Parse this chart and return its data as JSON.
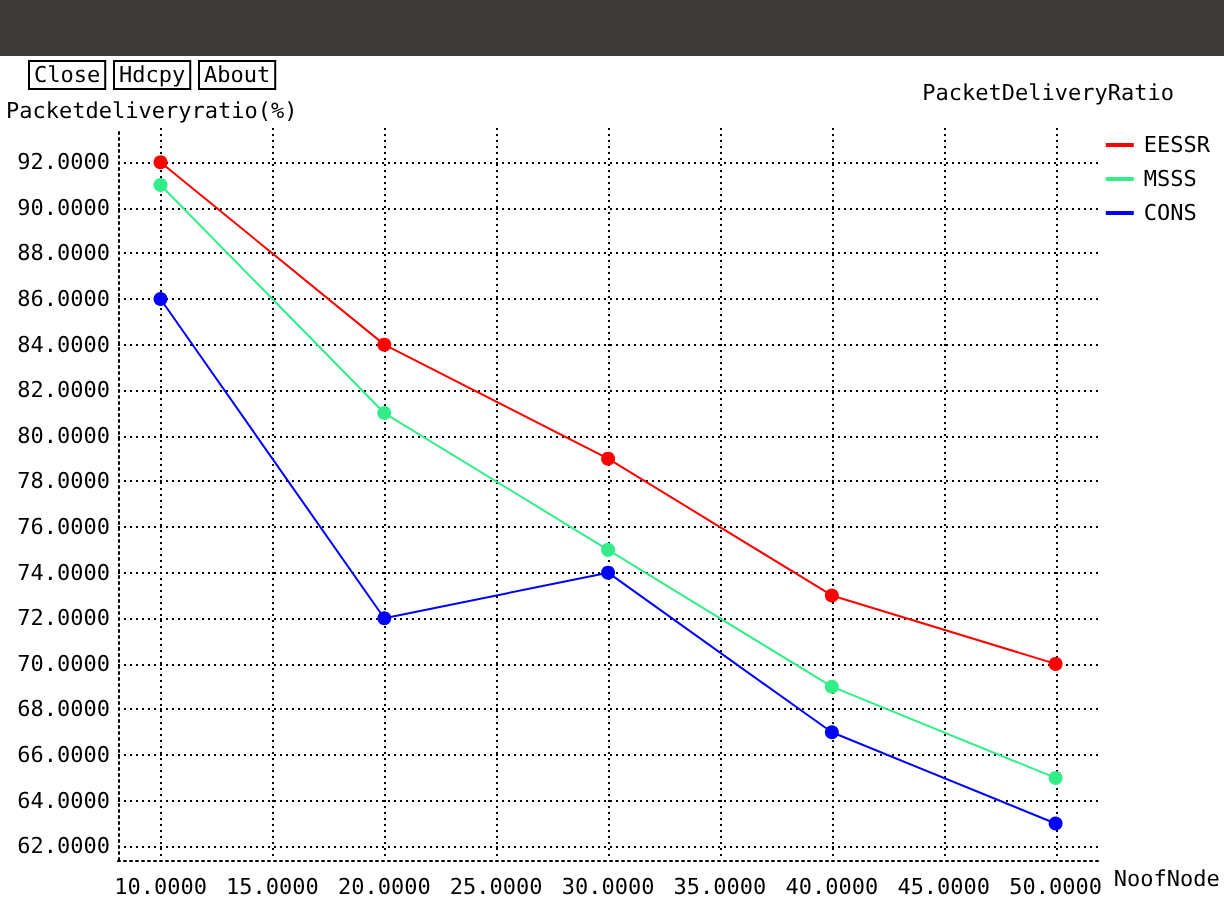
{
  "chart_data": {
    "type": "line",
    "title": "PacketDeliveryRatio",
    "ylabel": "Packetdeliveryratio(%)",
    "xlabel": "NoofNode",
    "annotations": [
      "Close",
      "Hdcpy",
      "About"
    ],
    "x": [
      10,
      20,
      30,
      40,
      50
    ],
    "series": [
      {
        "name": "EESSR",
        "color": "#ff0000",
        "values": [
          92,
          84,
          79,
          73,
          70
        ]
      },
      {
        "name": "MSSS",
        "color": "#33ee88",
        "values": [
          91,
          81,
          75,
          69,
          65
        ]
      },
      {
        "name": "CONS",
        "color": "#0000ff",
        "values": [
          86,
          72,
          74,
          67,
          63
        ]
      }
    ],
    "xlim": [
      8.1,
      51.9
    ],
    "xticks": [
      {
        "value": 10,
        "label": "10.0000"
      },
      {
        "value": 15,
        "label": "15.0000"
      },
      {
        "value": 20,
        "label": "20.0000"
      },
      {
        "value": 25,
        "label": "25.0000"
      },
      {
        "value": 30,
        "label": "30.0000"
      },
      {
        "value": 35,
        "label": "35.0000"
      },
      {
        "value": 40,
        "label": "40.0000"
      },
      {
        "value": 45,
        "label": "45.0000"
      },
      {
        "value": 50,
        "label": "50.0000"
      }
    ],
    "ylim": [
      61.4,
      93.5
    ],
    "yticks": [
      {
        "value": 62,
        "label": "62.0000"
      },
      {
        "value": 64,
        "label": "64.0000"
      },
      {
        "value": 66,
        "label": "66.0000"
      },
      {
        "value": 68,
        "label": "68.0000"
      },
      {
        "value": 70,
        "label": "70.0000"
      },
      {
        "value": 72,
        "label": "72.0000"
      },
      {
        "value": 74,
        "label": "74.0000"
      },
      {
        "value": 76,
        "label": "76.0000"
      },
      {
        "value": 78,
        "label": "78.0000"
      },
      {
        "value": 80,
        "label": "80.0000"
      },
      {
        "value": 82,
        "label": "82.0000"
      },
      {
        "value": 84,
        "label": "84.0000"
      },
      {
        "value": 86,
        "label": "86.0000"
      },
      {
        "value": 88,
        "label": "88.0000"
      },
      {
        "value": 90,
        "label": "90.0000"
      },
      {
        "value": 92,
        "label": "92.0000"
      }
    ],
    "grid": true,
    "legend": "right",
    "marker": "circle",
    "line_style": "solid"
  }
}
